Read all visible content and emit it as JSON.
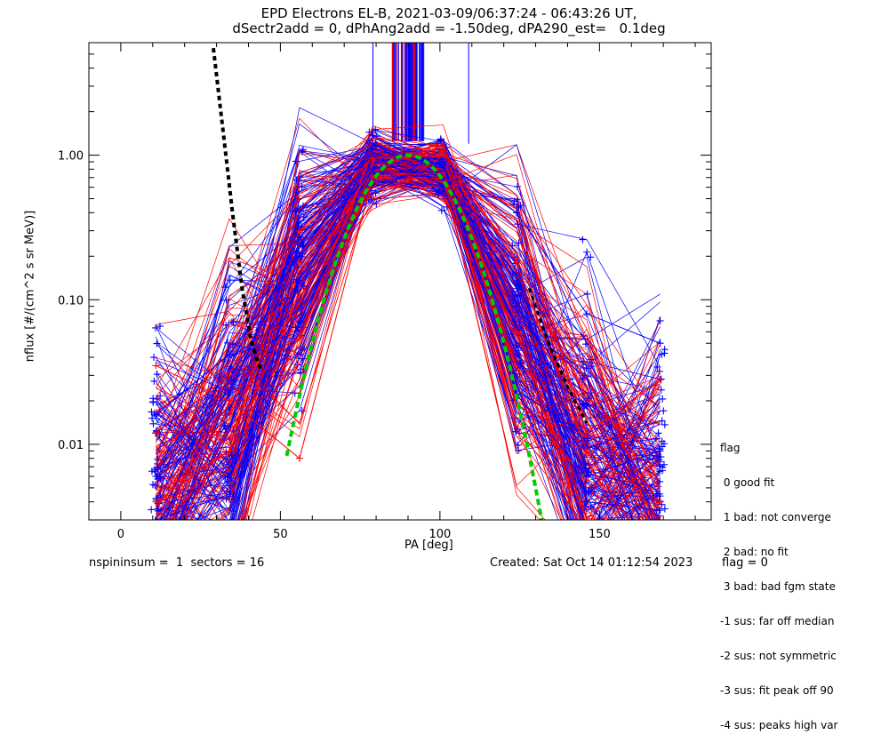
{
  "title_line1": "EPD Electrons EL-B, 2021-03-09/06:37:24 - 06:43:26 UT,",
  "title_line2": "dSectr2add = 0, dPhAng2add = -1.50deg, dPA290_est=   0.1deg",
  "footer": {
    "left": "nspininsum =  1  sectors = 16",
    "created": "Created: Sat Oct 14 01:12:54 2023",
    "flag": "flag = 0"
  },
  "legend": {
    "title": "flag",
    "items": [
      " 0 good fit",
      " 1 bad: not converge",
      " 2 bad: no fit",
      " 3 bad: bad fgm state",
      "-1 sus: far off median",
      "-2 sus: not symmetric",
      "-3 sus: fit peak off 90",
      "-4 sus: peaks high var"
    ]
  },
  "colors": {
    "series_a": "#0000ff",
    "series_b": "#ff0000",
    "fit": "#00cc00",
    "model": "#000000"
  },
  "chart_data": {
    "type": "line",
    "xlabel": "PA [deg]",
    "ylabel": "nflux [#/(cm^2 s sr MeV)]",
    "xlim": [
      -10,
      185
    ],
    "ylim": [
      0.003,
      6
    ],
    "yscale": "log",
    "xticks": [
      0,
      50,
      100,
      150
    ],
    "xtick_labels": [
      "0",
      "50",
      "100",
      "150"
    ],
    "yticks": [
      0.01,
      0.1,
      1.0
    ],
    "ytick_labels": [
      "0.01",
      "0.10",
      "1.00"
    ],
    "pa_bins": [
      11,
      34,
      56,
      79,
      101,
      124,
      146,
      169
    ],
    "representative_series": [
      {
        "color": "blue",
        "values": [
          0.006,
          0.022,
          0.27,
          1.1,
          0.85,
          0.022,
          0.006,
          0.009
        ]
      },
      {
        "color": "red",
        "values": [
          0.004,
          0.009,
          0.11,
          0.85,
          1.08,
          0.18,
          0.009,
          0.004
        ]
      },
      {
        "color": "blue",
        "values": [
          0.003,
          0.0045,
          0.07,
          0.75,
          0.7,
          0.12,
          0.004,
          0.0035
        ]
      },
      {
        "color": "red",
        "values": [
          0.012,
          0.03,
          0.3,
          0.95,
          1.0,
          0.4,
          0.012,
          0.028
        ]
      },
      {
        "color": "blue",
        "values": [
          0.016,
          0.042,
          0.2,
          0.8,
          0.9,
          0.4,
          0.08,
          0.05
        ]
      },
      {
        "color": "red",
        "values": [
          0.035,
          0.02,
          0.008,
          0.72,
          0.75,
          0.06,
          0.003,
          0.003
        ]
      }
    ],
    "fit_curve": {
      "color": "green",
      "style": "dashed",
      "peak_pa": 90,
      "peak_value": 1.0
    },
    "model_curve": {
      "color": "black",
      "style": "dashed",
      "x": [
        29,
        32,
        35,
        38,
        41,
        44
      ],
      "y": [
        5.5,
        1.5,
        0.4,
        0.12,
        0.05,
        0.032
      ]
    },
    "model_curve_right": {
      "color": "black",
      "style": "dashed",
      "x": [
        128,
        134,
        140,
        146
      ],
      "y": [
        0.12,
        0.05,
        0.025,
        0.014
      ]
    }
  }
}
